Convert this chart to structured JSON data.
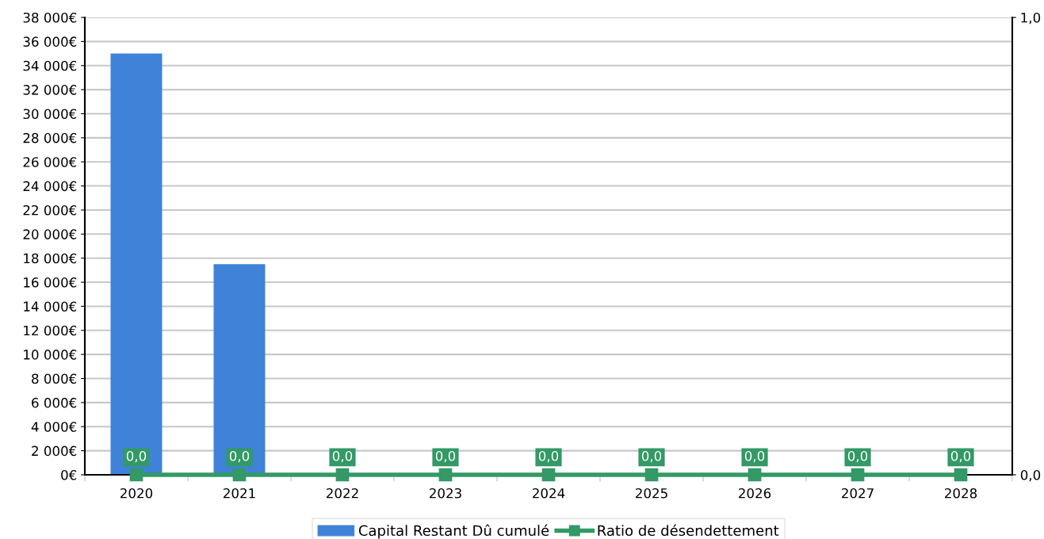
{
  "chart_data": {
    "type": "bar",
    "categories": [
      "2020",
      "2021",
      "2022",
      "2023",
      "2024",
      "2025",
      "2026",
      "2027",
      "2028"
    ],
    "series": [
      {
        "name": "Capital Restant Dû cumulé",
        "color": "#3f83d8",
        "values": [
          35000,
          17500,
          0,
          0,
          0,
          0,
          0,
          0,
          0
        ]
      },
      {
        "name": "Ratio de désendettement",
        "type": "line",
        "axis": "y2",
        "color": "#339966",
        "marker": "square",
        "line_style": "solid",
        "values": [
          0,
          0,
          0,
          0,
          0,
          0,
          0,
          0,
          0
        ],
        "value_labels": [
          "0,0",
          "0,0",
          "0,0",
          "0,0",
          "0,0",
          "0,0",
          "0,0",
          "0,0",
          "0,0"
        ]
      }
    ],
    "ylim": [
      0,
      38000
    ],
    "yticks": [
      {
        "value": 0,
        "label": "0€"
      },
      {
        "value": 2000,
        "label": "2 000€"
      },
      {
        "value": 4000,
        "label": "4 000€"
      },
      {
        "value": 6000,
        "label": "6 000€"
      },
      {
        "value": 8000,
        "label": "8 000€"
      },
      {
        "value": 10000,
        "label": "10 000€"
      },
      {
        "value": 12000,
        "label": "12 000€"
      },
      {
        "value": 14000,
        "label": "14 000€"
      },
      {
        "value": 16000,
        "label": "16 000€"
      },
      {
        "value": 18000,
        "label": "18 000€"
      },
      {
        "value": 20000,
        "label": "20 000€"
      },
      {
        "value": 22000,
        "label": "22 000€"
      },
      {
        "value": 24000,
        "label": "24 000€"
      },
      {
        "value": 26000,
        "label": "26 000€"
      },
      {
        "value": 28000,
        "label": "28 000€"
      },
      {
        "value": 30000,
        "label": "30 000€"
      },
      {
        "value": 32000,
        "label": "32 000€"
      },
      {
        "value": 34000,
        "label": "34 000€"
      },
      {
        "value": 36000,
        "label": "36 000€"
      },
      {
        "value": 38000,
        "label": "38 000€"
      }
    ],
    "y2lim": [
      0,
      1
    ],
    "y2ticks": [
      {
        "value": 0,
        "label": "0,0"
      },
      {
        "value": 1,
        "label": "1,0"
      }
    ],
    "grid": "y",
    "legend": "bottom"
  }
}
